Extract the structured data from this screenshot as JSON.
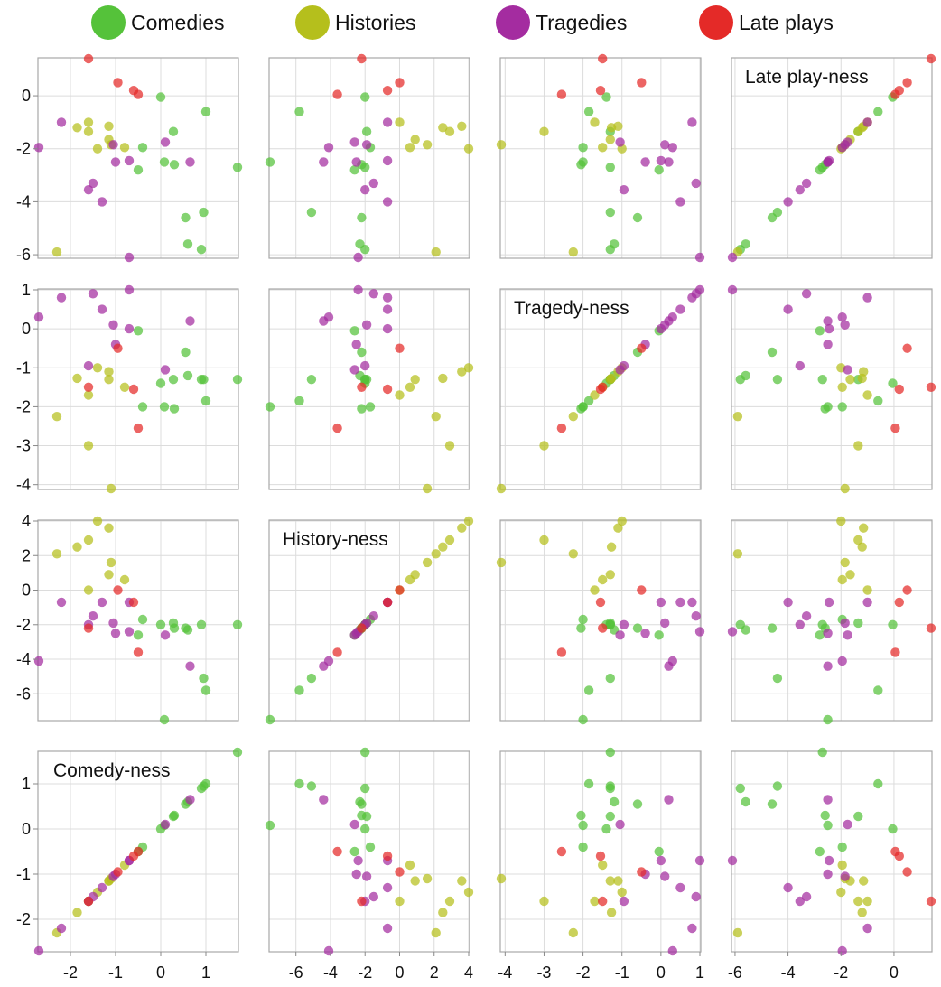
{
  "chart_data": {
    "type": "scatter",
    "chart_kind": "scatterplot-matrix",
    "legend_position": "top",
    "grid": true,
    "colors": {
      "Comedies": "#55c23a",
      "Histories": "#b5bf1c",
      "Tragedies": "#a42ca0",
      "Late plays": "#e42a28"
    },
    "legend": [
      "Comedies",
      "Histories",
      "Tragedies",
      "Late plays"
    ],
    "variables": [
      {
        "key": "comedy",
        "label": "Comedy-ness",
        "range": [
          -2.7,
          1.7
        ],
        "ticks": [
          -2,
          -1,
          0,
          1
        ]
      },
      {
        "key": "history",
        "label": "History-ness",
        "range": [
          -7.5,
          4.0
        ],
        "ticks": [
          -6,
          -4,
          -2,
          0,
          2,
          4
        ]
      },
      {
        "key": "tragedy",
        "label": "Tragedy-ness",
        "range": [
          -4.1,
          1.0
        ],
        "ticks": [
          -4,
          -3,
          -2,
          -1,
          0,
          1
        ]
      },
      {
        "key": "late",
        "label": "Late play-ness",
        "range": [
          -6.1,
          1.4
        ],
        "ticks": [
          -6,
          -4,
          -2,
          0
        ]
      }
    ],
    "matrix_order": {
      "columns": [
        "comedy",
        "history",
        "tragedy",
        "late"
      ],
      "rows_top_to_bottom": [
        "late",
        "tragedy",
        "history",
        "comedy"
      ]
    },
    "points": [
      {
        "group": "Comedies",
        "comedy": 1.7,
        "history": -2.0,
        "tragedy": -1.3,
        "late": -2.7
      },
      {
        "group": "Comedies",
        "comedy": 0.08,
        "history": -7.5,
        "tragedy": -2.0,
        "late": -2.5
      },
      {
        "group": "Comedies",
        "comedy": 1.0,
        "history": -5.8,
        "tragedy": -1.85,
        "late": -0.6
      },
      {
        "group": "Comedies",
        "comedy": 0.95,
        "history": -5.1,
        "tragedy": -1.3,
        "late": -4.4
      },
      {
        "group": "Comedies",
        "comedy": 0.9,
        "history": -2.0,
        "tragedy": -1.3,
        "late": -5.8
      },
      {
        "group": "Comedies",
        "comedy": 0.6,
        "history": -2.3,
        "tragedy": -1.2,
        "late": -5.6
      },
      {
        "group": "Comedies",
        "comedy": 0.55,
        "history": -2.2,
        "tragedy": -0.6,
        "late": -4.6
      },
      {
        "group": "Comedies",
        "comedy": 0.3,
        "history": -2.2,
        "tragedy": -2.05,
        "late": -2.6
      },
      {
        "group": "Comedies",
        "comedy": 0.28,
        "history": -1.9,
        "tragedy": -1.3,
        "late": -1.35
      },
      {
        "group": "Comedies",
        "comedy": 0.0,
        "history": -2.0,
        "tragedy": -1.4,
        "late": -0.05
      },
      {
        "group": "Comedies",
        "comedy": -0.4,
        "history": -1.7,
        "tragedy": -2.0,
        "late": -1.95
      },
      {
        "group": "Comedies",
        "comedy": -0.5,
        "history": -2.6,
        "tragedy": -0.05,
        "late": -2.8
      },
      {
        "group": "Histories",
        "comedy": -2.3,
        "history": 2.1,
        "tragedy": -2.25,
        "late": -5.9
      },
      {
        "group": "Histories",
        "comedy": -1.85,
        "history": 2.5,
        "tragedy": -1.27,
        "late": -1.2
      },
      {
        "group": "Histories",
        "comedy": -1.6,
        "history": 2.9,
        "tragedy": -3.0,
        "late": -1.35
      },
      {
        "group": "Histories",
        "comedy": -1.6,
        "history": 0.0,
        "tragedy": -1.7,
        "late": -1.0
      },
      {
        "group": "Histories",
        "comedy": -1.4,
        "history": 4.0,
        "tragedy": -1.0,
        "late": -2.0
      },
      {
        "group": "Histories",
        "comedy": -1.15,
        "history": 3.6,
        "tragedy": -1.1,
        "late": -1.15
      },
      {
        "group": "Histories",
        "comedy": -1.15,
        "history": 0.9,
        "tragedy": -1.3,
        "late": -1.65
      },
      {
        "group": "Histories",
        "comedy": -1.1,
        "history": 1.6,
        "tragedy": -4.1,
        "late": -1.85
      },
      {
        "group": "Histories",
        "comedy": -0.8,
        "history": 0.6,
        "tragedy": -1.5,
        "late": -1.95
      },
      {
        "group": "Tragedies",
        "comedy": -2.7,
        "history": -4.1,
        "tragedy": 0.3,
        "late": -1.95
      },
      {
        "group": "Tragedies",
        "comedy": -2.2,
        "history": -0.7,
        "tragedy": 0.8,
        "late": -1.0
      },
      {
        "group": "Tragedies",
        "comedy": -1.6,
        "history": -2.0,
        "tragedy": -0.95,
        "late": -3.55
      },
      {
        "group": "Tragedies",
        "comedy": -1.5,
        "history": -1.5,
        "tragedy": 0.9,
        "late": -3.3
      },
      {
        "group": "Tragedies",
        "comedy": -1.3,
        "history": -0.7,
        "tragedy": 0.5,
        "late": -4.0
      },
      {
        "group": "Tragedies",
        "comedy": -1.05,
        "history": -1.9,
        "tragedy": 0.1,
        "late": -1.85
      },
      {
        "group": "Tragedies",
        "comedy": -1.0,
        "history": -2.5,
        "tragedy": -0.4,
        "late": -2.5
      },
      {
        "group": "Tragedies",
        "comedy": -0.7,
        "history": -2.4,
        "tragedy": 1.0,
        "late": -6.1
      },
      {
        "group": "Tragedies",
        "comedy": -0.7,
        "history": -0.7,
        "tragedy": 0.0,
        "late": -2.45
      },
      {
        "group": "Tragedies",
        "comedy": 0.1,
        "history": -2.6,
        "tragedy": -1.05,
        "late": -1.75
      },
      {
        "group": "Tragedies",
        "comedy": 0.65,
        "history": -4.4,
        "tragedy": 0.2,
        "late": -2.5
      },
      {
        "group": "Late plays",
        "comedy": -1.6,
        "history": -2.2,
        "tragedy": -1.5,
        "late": 1.4
      },
      {
        "group": "Late plays",
        "comedy": -0.95,
        "history": 0.0,
        "tragedy": -0.5,
        "late": 0.5
      },
      {
        "group": "Late plays",
        "comedy": -0.6,
        "history": -0.7,
        "tragedy": -1.55,
        "late": 0.2
      },
      {
        "group": "Late plays",
        "comedy": -0.5,
        "history": -3.6,
        "tragedy": -2.55,
        "late": 0.05
      }
    ]
  }
}
